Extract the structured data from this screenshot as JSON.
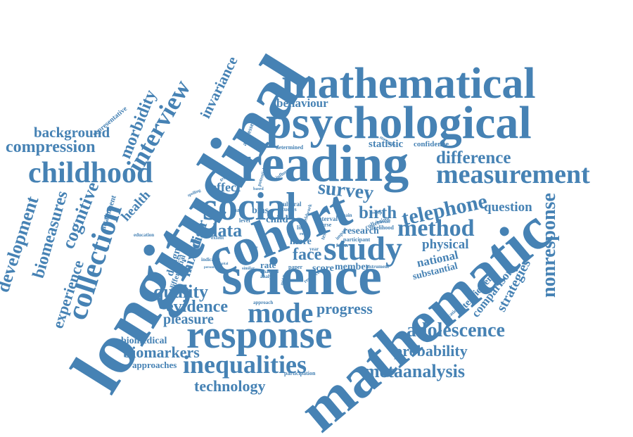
{
  "cloud": {
    "color": "#4682b4",
    "words": [
      {
        "text": "longitudinal"
      },
      {
        "text": "mathematical"
      },
      {
        "text": "psychological"
      },
      {
        "text": "reading"
      },
      {
        "text": "measurement"
      },
      {
        "text": "childhood"
      },
      {
        "text": "social"
      },
      {
        "text": "cohort"
      },
      {
        "text": "science"
      },
      {
        "text": "study"
      },
      {
        "text": "mathematic"
      },
      {
        "text": "response"
      },
      {
        "text": "inequalities"
      },
      {
        "text": "mode"
      },
      {
        "text": "telephone"
      },
      {
        "text": "method"
      },
      {
        "text": "difference"
      },
      {
        "text": "survey"
      },
      {
        "text": "progress"
      },
      {
        "text": "adolescence"
      },
      {
        "text": "collection"
      },
      {
        "text": "interview"
      },
      {
        "text": "quality"
      },
      {
        "text": "evidence"
      },
      {
        "text": "pleasure"
      },
      {
        "text": "biomarkers"
      },
      {
        "text": "technology"
      },
      {
        "text": "metaanalysis"
      },
      {
        "text": "probability"
      },
      {
        "text": "nonresponse"
      },
      {
        "text": "development"
      },
      {
        "text": "biomeasures"
      },
      {
        "text": "cognitive"
      },
      {
        "text": "experience"
      },
      {
        "text": "compression"
      },
      {
        "text": "background"
      },
      {
        "text": "morbidity"
      },
      {
        "text": "health"
      },
      {
        "text": "invariance"
      },
      {
        "text": "behaviour"
      },
      {
        "text": "statistic"
      },
      {
        "text": "confidence"
      },
      {
        "text": "data"
      },
      {
        "text": "distr"
      },
      {
        "text": "mixed"
      },
      {
        "text": "design"
      },
      {
        "text": "face"
      },
      {
        "text": "physical"
      },
      {
        "text": "national"
      },
      {
        "text": "substantial"
      },
      {
        "text": "strategies"
      },
      {
        "text": "comparison"
      },
      {
        "text": "interviewer"
      },
      {
        "text": "question"
      },
      {
        "text": "birth"
      },
      {
        "text": "research"
      },
      {
        "text": "effect"
      },
      {
        "text": "bias"
      },
      {
        "text": "child"
      },
      {
        "text": "more"
      },
      {
        "text": "rate"
      },
      {
        "text": "score"
      },
      {
        "text": "member"
      },
      {
        "text": "biomedical"
      },
      {
        "text": "approaches"
      },
      {
        "text": "differential"
      },
      {
        "text": "participation"
      },
      {
        "text": "representative"
      },
      {
        "text": "attainment"
      },
      {
        "text": "addresses"
      },
      {
        "text": "determined"
      },
      {
        "text": "potential"
      },
      {
        "text": "influence"
      },
      {
        "text": "cultural"
      },
      {
        "text": "studies"
      },
      {
        "text": "interval"
      },
      {
        "text": "nurse"
      },
      {
        "text": "collecting"
      },
      {
        "text": "likelihood"
      },
      {
        "text": "participant"
      },
      {
        "text": "increase"
      },
      {
        "text": "domain"
      },
      {
        "text": "factor"
      },
      {
        "text": "year"
      },
      {
        "text": "paper"
      },
      {
        "text": "instrument"
      },
      {
        "text": "financial"
      },
      {
        "text": "analysis"
      },
      {
        "text": "resource"
      },
      {
        "text": "educational"
      },
      {
        "text": "approach"
      },
      {
        "text": "extent"
      },
      {
        "text": "level"
      },
      {
        "text": "mail"
      },
      {
        "text": "education"
      },
      {
        "text": "indicator"
      },
      {
        "text": "woman"
      },
      {
        "text": "capital"
      },
      {
        "text": "person"
      },
      {
        "text": "similar"
      },
      {
        "text": "fieldwork"
      },
      {
        "text": "measure"
      },
      {
        "text": "growth"
      },
      {
        "text": "spelling"
      },
      {
        "text": "based"
      },
      {
        "text": "life"
      },
      {
        "text": "role"
      },
      {
        "text": "test"
      },
      {
        "text": "impact"
      },
      {
        "text": "sweep"
      },
      {
        "text": "middle"
      }
    ]
  }
}
